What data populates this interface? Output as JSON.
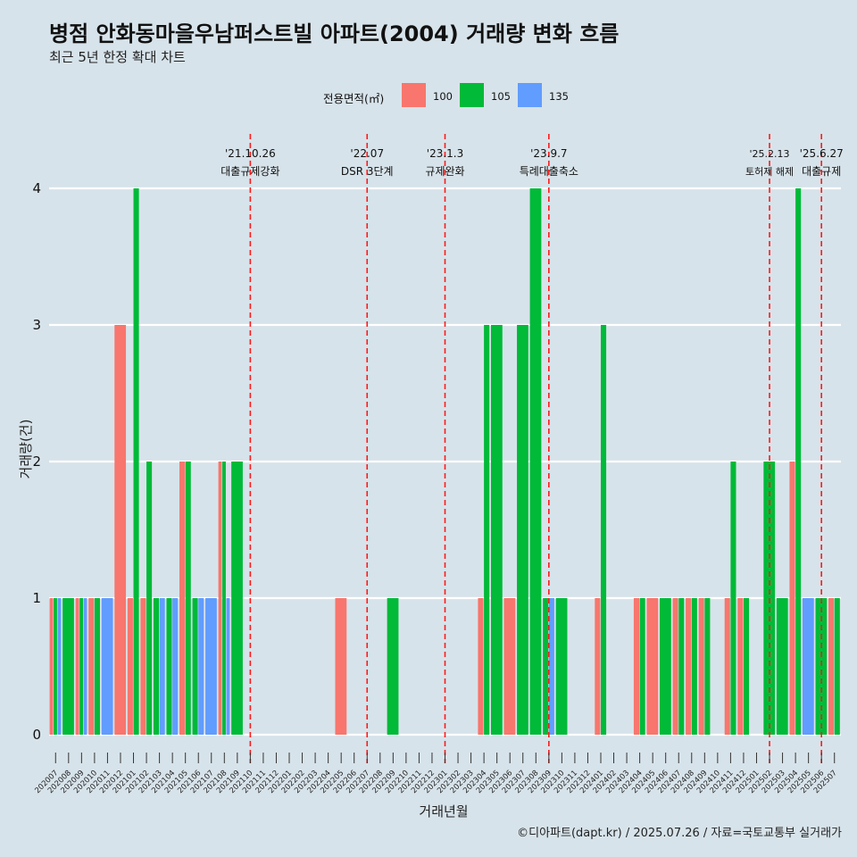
{
  "header": {
    "title": "병점 안화동마을우남퍼스트빌 아파트(2004) 거래량 변화 흐름",
    "subtitle": "최근 5년 한정 확대 차트",
    "caption": "©디아파트(dapt.kr) / 2025.07.26 / 자료=국토교통부 실거래가"
  },
  "legend": {
    "title": "전용면적(㎡)",
    "items": [
      {
        "label": "100",
        "color": "#f8766d"
      },
      {
        "label": "105",
        "color": "#00ba38"
      },
      {
        "label": "135",
        "color": "#619cff"
      }
    ]
  },
  "chart_data": {
    "type": "bar",
    "stacking": "dodge",
    "xlabel": "거래년월",
    "ylabel": "거래량(건)",
    "ylim": [
      0,
      4
    ],
    "yticks": [
      0,
      1,
      2,
      3,
      4
    ],
    "months": [
      "202007",
      "202008",
      "202009",
      "202010",
      "202011",
      "202012",
      "202101",
      "202102",
      "202103",
      "202104",
      "202105",
      "202106",
      "202107",
      "202108",
      "202109",
      "202110",
      "202111",
      "202112",
      "202201",
      "202202",
      "202203",
      "202204",
      "202205",
      "202206",
      "202207",
      "202208",
      "202209",
      "202210",
      "202211",
      "202212",
      "202301",
      "202302",
      "202303",
      "202304",
      "202305",
      "202306",
      "202307",
      "202308",
      "202309",
      "202310",
      "202311",
      "202312",
      "202401",
      "202402",
      "202403",
      "202404",
      "202405",
      "202406",
      "202407",
      "202408",
      "202409",
      "202410",
      "202411",
      "202412",
      "202501",
      "202502",
      "202503",
      "202504",
      "202505",
      "202506",
      "202507"
    ],
    "series": [
      {
        "name": "100",
        "color": "#f8766d",
        "values": {
          "202007": 1,
          "202009": 1,
          "202010": 1,
          "202012": 3,
          "202101": 1,
          "202102": 1,
          "202105": 2,
          "202108": 2,
          "202205": 1,
          "202304": 1,
          "202306": 1,
          "202401": 1,
          "202404": 1,
          "202405": 1,
          "202407": 1,
          "202408": 1,
          "202409": 1,
          "202411": 1,
          "202412": 1,
          "202504": 2,
          "202507": 1
        }
      },
      {
        "name": "105",
        "color": "#00ba38",
        "values": {
          "202007": 1,
          "202008": 1,
          "202009": 1,
          "202010": 1,
          "202101": 4,
          "202102": 2,
          "202103": 1,
          "202104": 1,
          "202105": 2,
          "202106": 1,
          "202108": 2,
          "202109": 2,
          "202209": 1,
          "202304": 3,
          "202305": 3,
          "202307": 3,
          "202308": 4,
          "202309": 1,
          "202310": 1,
          "202401": 3,
          "202404": 1,
          "202406": 1,
          "202407": 1,
          "202408": 1,
          "202409": 1,
          "202411": 2,
          "202412": 1,
          "202502": 2,
          "202503": 1,
          "202504": 4,
          "202506": 1,
          "202507": 1
        }
      },
      {
        "name": "135",
        "color": "#619cff",
        "values": {
          "202007": 1,
          "202009": 1,
          "202011": 1,
          "202103": 1,
          "202104": 1,
          "202106": 1,
          "202107": 1,
          "202108": 1,
          "202309": 1,
          "202505": 1
        }
      }
    ],
    "events": [
      {
        "month": "202110",
        "date": "'21.10.26",
        "label": "대출규제강화"
      },
      {
        "month": "202207",
        "date": "'22.07",
        "label": "DSR 3단계"
      },
      {
        "month": "202301",
        "date": "'23.1.3",
        "label": "규제완화"
      },
      {
        "month": "202309",
        "date": "'23.9.7",
        "label": "특례대출축소"
      },
      {
        "month": "202502",
        "date": "'25.2.13",
        "label": "토허제 해제"
      },
      {
        "month": "202506",
        "date": "'25.6.27",
        "label": "대출규제"
      }
    ]
  }
}
